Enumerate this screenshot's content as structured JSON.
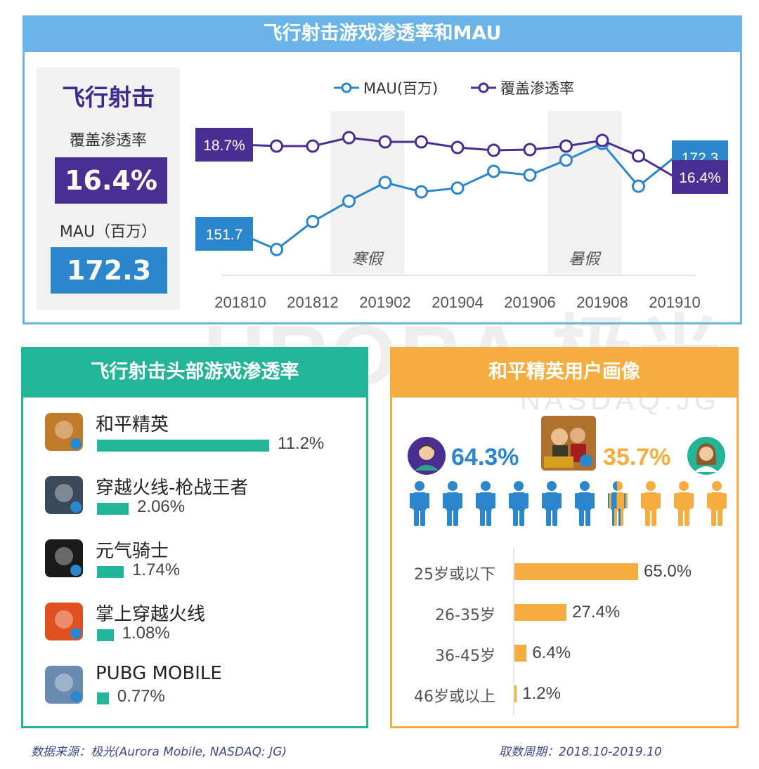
{
  "colors": {
    "blue": "#2b86cc",
    "purple": "#4b2e91",
    "teal": "#22b597",
    "orange": "#f6ad3f",
    "top_header_bg": "#6ab4e8",
    "male": "#2b86cc",
    "female": "#f6ad3f"
  },
  "top": {
    "title": "飞行射击游戏渗透率和MAU",
    "kpi": {
      "category": "飞行射击",
      "penetration_label": "覆盖渗透率",
      "penetration_value": "16.4%",
      "mau_label": "MAU（百万）",
      "mau_value": "172.3"
    },
    "seasons": [
      "寒假",
      "暑假"
    ]
  },
  "chart_data": [
    {
      "type": "line",
      "x": [
        "201810",
        "201811",
        "201812",
        "201901",
        "201902",
        "201903",
        "201904",
        "201905",
        "201906",
        "201907",
        "201908",
        "201909",
        "201910"
      ],
      "x_tick_labels": [
        "201810",
        "201812",
        "201902",
        "201904",
        "201906",
        "201908",
        "201910"
      ],
      "legend_position": "top",
      "series": [
        {
          "name": "MAU(百万)",
          "color": "#2b86cc",
          "values": [
            151.7,
            147.5,
            155.0,
            160.5,
            165.5,
            163.0,
            164.0,
            168.5,
            167.5,
            171.5,
            176.0,
            164.5,
            172.3
          ],
          "start_label": "151.7",
          "end_label": "172.3"
        },
        {
          "name": "覆盖渗透率",
          "color": "#4b2e91",
          "values": [
            18.7,
            18.6,
            18.6,
            19.2,
            18.9,
            18.9,
            18.5,
            18.3,
            18.35,
            18.6,
            19.0,
            17.9,
            16.4
          ],
          "start_label": "18.7%",
          "end_label": "16.4%"
        }
      ]
    },
    {
      "type": "bar",
      "title": "飞行射击头部游戏渗透率",
      "categories": [
        "和平精英",
        "穿越火线-枪战王者",
        "元气骑士",
        "掌上穿越火线",
        "PUBG MOBILE"
      ],
      "values": [
        11.2,
        2.06,
        1.74,
        1.08,
        0.77
      ],
      "value_labels": [
        "11.2%",
        "2.06%",
        "1.74%",
        "1.08%",
        "0.77%"
      ],
      "icons": [
        "pubg-peace-elite-icon",
        "crossfire-mobile-icon",
        "soul-knight-icon",
        "cf-helper-icon",
        "pubg-mobile-icon"
      ]
    },
    {
      "type": "bar",
      "title": "和平精英用户画像",
      "categories": [
        "25岁或以下",
        "26-35岁",
        "36-45岁",
        "46岁或以上"
      ],
      "values": [
        65.0,
        27.4,
        6.4,
        1.2
      ],
      "value_labels": [
        "65.0%",
        "27.4%",
        "6.4%",
        "1.2%"
      ]
    }
  ],
  "gender": {
    "male_pct": "64.3%",
    "female_pct": "35.7%",
    "male_share": 0.643
  },
  "watermark": {
    "main": "URORA 极光",
    "sub": "NASDAQ:JG"
  },
  "footer": {
    "source": "数据来源：极光(Aurora Mobile, NASDAQ: JG)",
    "period": "取数周期：2018.10-2019.10"
  }
}
